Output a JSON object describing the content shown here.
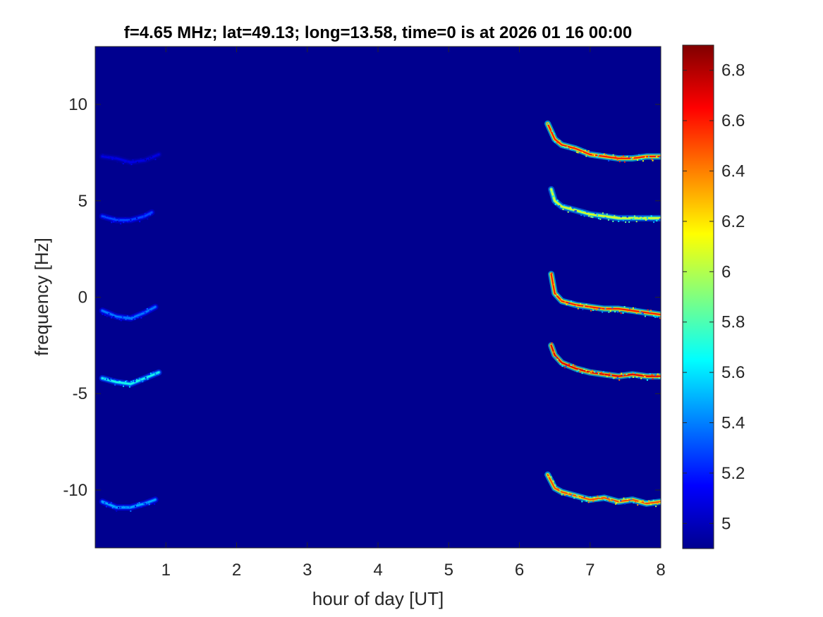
{
  "chart_data": {
    "type": "heatmap",
    "title": "f=4.65 MHz;  lat=49.13; long=13.58, time=0 is at 2026 01 16 00:00",
    "xlabel": "hour of day [UT]",
    "ylabel": "frequency [Hz]",
    "xlim": [
      0,
      8
    ],
    "ylim": [
      -13,
      13
    ],
    "xticks": [
      1,
      2,
      3,
      4,
      5,
      6,
      7,
      8
    ],
    "yticks": [
      -10,
      -5,
      0,
      5,
      10
    ],
    "grid": false,
    "colormap": "jet",
    "background_color": "#00008F",
    "colorbar": {
      "range": [
        4.9,
        6.9
      ],
      "ticks": [
        5,
        5.2,
        5.4,
        5.6,
        5.8,
        6,
        6.2,
        6.4,
        6.6,
        6.8
      ],
      "placement": "right"
    },
    "traces": [
      {
        "t": [
          0.1,
          0.3,
          0.5,
          0.7,
          0.85
        ],
        "f": [
          -10.6,
          -10.9,
          -10.9,
          -10.7,
          -10.5
        ],
        "intensity": 5.5
      },
      {
        "t": [
          0.1,
          0.3,
          0.5,
          0.7,
          0.9
        ],
        "f": [
          -4.2,
          -4.4,
          -4.5,
          -4.2,
          -3.9
        ],
        "intensity": 5.7
      },
      {
        "t": [
          0.1,
          0.3,
          0.5,
          0.7,
          0.85
        ],
        "f": [
          -0.7,
          -1.0,
          -1.1,
          -0.8,
          -0.5
        ],
        "intensity": 5.4
      },
      {
        "t": [
          0.1,
          0.3,
          0.5,
          0.7,
          0.8
        ],
        "f": [
          4.2,
          4.0,
          4.0,
          4.2,
          4.4
        ],
        "intensity": 5.3
      },
      {
        "t": [
          0.1,
          0.3,
          0.5,
          0.7,
          0.9
        ],
        "f": [
          7.3,
          7.2,
          7.0,
          7.1,
          7.4
        ],
        "intensity": 5.1
      },
      {
        "t": [
          6.4,
          6.5,
          6.6,
          6.8,
          7.0,
          7.2,
          7.4,
          7.6,
          7.8,
          8.0
        ],
        "f": [
          -9.2,
          -9.9,
          -10.1,
          -10.3,
          -10.5,
          -10.4,
          -10.6,
          -10.5,
          -10.7,
          -10.6
        ],
        "intensity": 6.5
      },
      {
        "t": [
          6.45,
          6.5,
          6.6,
          6.8,
          7.0,
          7.2,
          7.4,
          7.6,
          7.8,
          8.0
        ],
        "f": [
          -2.5,
          -3.0,
          -3.4,
          -3.7,
          -3.9,
          -4.0,
          -4.1,
          -4.0,
          -4.1,
          -4.1
        ],
        "intensity": 6.7
      },
      {
        "t": [
          6.45,
          6.5,
          6.6,
          6.8,
          7.0,
          7.2,
          7.4,
          7.6,
          7.8,
          8.0
        ],
        "f": [
          1.2,
          0.2,
          -0.2,
          -0.4,
          -0.5,
          -0.6,
          -0.6,
          -0.7,
          -0.8,
          -0.9
        ],
        "intensity": 6.6
      },
      {
        "t": [
          6.45,
          6.5,
          6.6,
          6.8,
          7.0,
          7.2,
          7.4,
          7.6,
          7.8,
          8.0
        ],
        "f": [
          5.6,
          5.0,
          4.7,
          4.5,
          4.3,
          4.2,
          4.1,
          4.1,
          4.1,
          4.1
        ],
        "intensity": 6.1
      },
      {
        "t": [
          6.4,
          6.45,
          6.5,
          6.6,
          6.8,
          7.0,
          7.2,
          7.4,
          7.6,
          7.8,
          8.0
        ],
        "f": [
          9.0,
          8.6,
          8.2,
          7.9,
          7.7,
          7.4,
          7.3,
          7.2,
          7.2,
          7.3,
          7.3
        ],
        "intensity": 6.6
      }
    ]
  }
}
